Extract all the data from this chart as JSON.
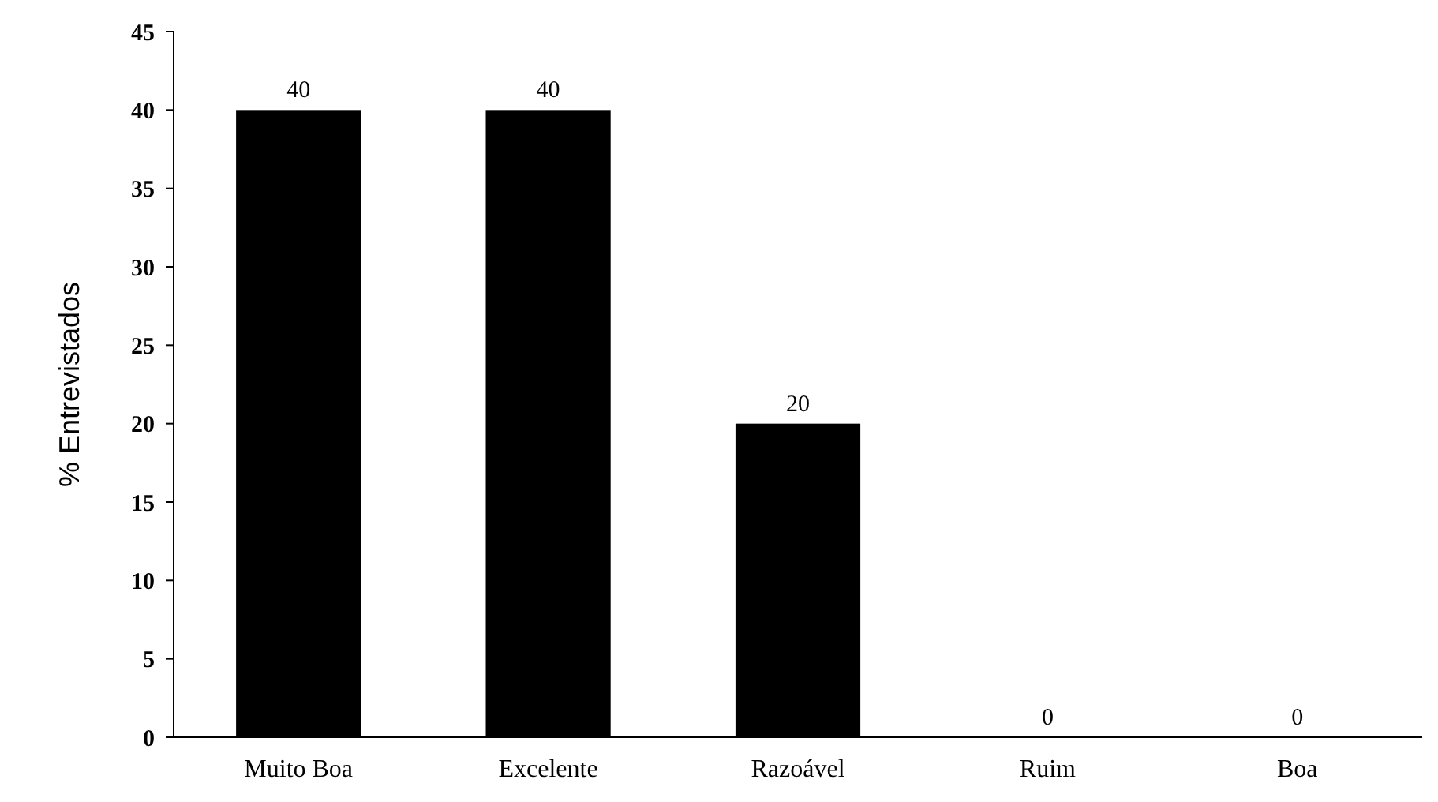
{
  "chart_data": {
    "type": "bar",
    "ylabel": "% Entrevistados",
    "categories": [
      "Muito Boa",
      "Excelente",
      "Razoável",
      "Ruim",
      "Boa"
    ],
    "values": [
      40,
      40,
      20,
      0,
      0
    ],
    "color": "#000000",
    "ylim": [
      0,
      45
    ],
    "yticks": [
      0,
      5,
      10,
      15,
      20,
      25,
      30,
      35,
      40,
      45
    ],
    "data_labels": true,
    "grid": false
  }
}
